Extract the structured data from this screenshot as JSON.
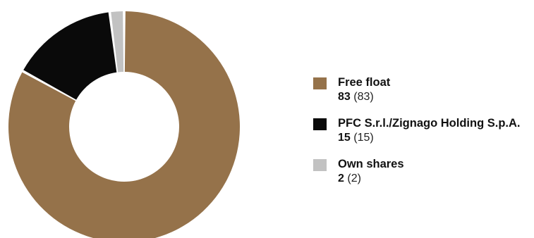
{
  "chart_data": {
    "type": "pie",
    "donut": true,
    "series": [
      {
        "name": "Free float",
        "value": 83,
        "previous": 83,
        "color": "#95724a"
      },
      {
        "name": "PFC S.r.l./Zignago Holding S.p.A.",
        "value": 15,
        "previous": 15,
        "color": "#0a0a0a"
      },
      {
        "name": "Own shares",
        "value": 2,
        "previous": 2,
        "color": "#c2c2c2"
      }
    ],
    "legend_position": "right"
  },
  "legend": [
    {
      "label": "Free float",
      "value": "83",
      "previous": "(83)"
    },
    {
      "label": "PFC S.r.l./Zignago Holding S.p.A.",
      "value": "15",
      "previous": "(15)"
    },
    {
      "label": "Own shares",
      "value": "2",
      "previous": "(2)"
    }
  ]
}
